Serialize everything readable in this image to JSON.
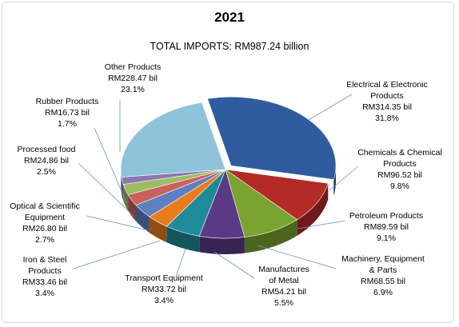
{
  "title": "2021",
  "subtitle": "TOTAL IMPORTS: RM987.24 billion",
  "chart_data": {
    "type": "pie",
    "title": "2021",
    "subtitle": "TOTAL IMPORTS: RM987.24 billion",
    "slices": [
      {
        "lines": [
          "Electrical & Electronic",
          "Products"
        ],
        "value_text": "RM314.35 bil",
        "pct_text": "31.8%",
        "value": 314.35,
        "pct": 31.8,
        "color": "#2e5c9e"
      },
      {
        "lines": [
          "Chemicals & Chemical",
          "Products"
        ],
        "value_text": "RM96.52 bil",
        "pct_text": "9.8%",
        "value": 96.52,
        "pct": 9.8,
        "color": "#b32a26"
      },
      {
        "lines": [
          "Petroleum Products"
        ],
        "value_text": "RM89.59 bil",
        "pct_text": "9.1%",
        "value": 89.59,
        "pct": 9.1,
        "color": "#7aa32f"
      },
      {
        "lines": [
          "Machinery, Equipment",
          "& Parts"
        ],
        "value_text": "RM68.55 bil",
        "pct_text": "6.9%",
        "value": 68.55,
        "pct": 6.9,
        "color": "#5a3a86"
      },
      {
        "lines": [
          "Manufactures",
          "of Metal"
        ],
        "value_text": "RM54.21 bil",
        "pct_text": "5.5%",
        "value": 54.21,
        "pct": 5.5,
        "color": "#1f8a9a"
      },
      {
        "lines": [
          "Transport Equipment"
        ],
        "value_text": "RM33.72 bil",
        "pct_text": "3.4%",
        "value": 33.72,
        "pct": 3.4,
        "color": "#e67c1c"
      },
      {
        "lines": [
          "Iron & Steel",
          "Products"
        ],
        "value_text": "RM33.46 bil",
        "pct_text": "3.4%",
        "value": 33.46,
        "pct": 3.4,
        "color": "#5f7fbf"
      },
      {
        "lines": [
          "Optical & Scientific",
          "Equipment"
        ],
        "value_text": "RM26.80 bil",
        "pct_text": "2.7%",
        "value": 26.8,
        "pct": 2.7,
        "color": "#c9615c"
      },
      {
        "lines": [
          "Processed food"
        ],
        "value_text": "RM24.86 bil",
        "pct_text": "2.5%",
        "value": 24.86,
        "pct": 2.5,
        "color": "#9cbd63"
      },
      {
        "lines": [
          "Rubber Products"
        ],
        "value_text": "RM16.73 bil",
        "pct_text": "1.7%",
        "value": 16.73,
        "pct": 1.7,
        "color": "#8c77b3"
      },
      {
        "lines": [
          "Other Products"
        ],
        "value_text": "RM228.47 bil",
        "pct_text": "23.1%",
        "value": 228.47,
        "pct": 23.1,
        "color": "#8fc3d9"
      }
    ]
  }
}
